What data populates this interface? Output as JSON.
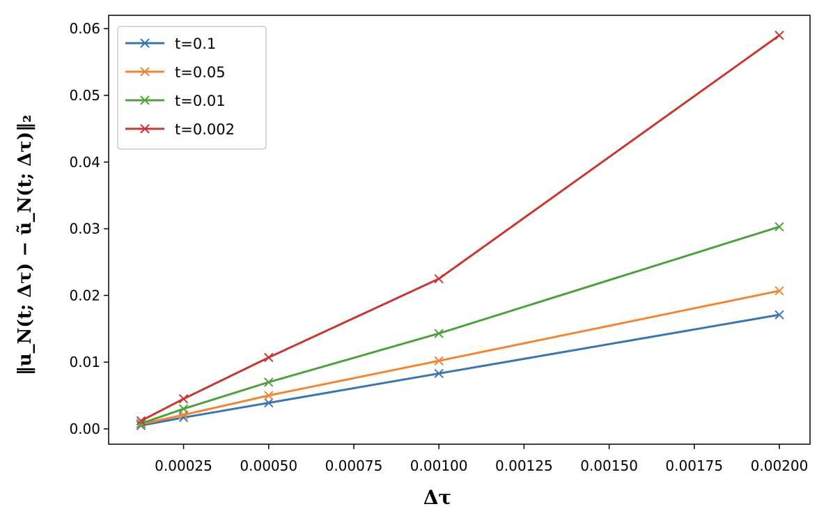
{
  "chart_data": {
    "type": "line",
    "xlabel": "Δτ",
    "ylabel": "‖u_N(t; Δτ) − ũ_N(t; Δτ)‖₂",
    "xlim": [
      3e-05,
      0.00209
    ],
    "ylim": [
      -0.0023,
      0.062
    ],
    "x_ticks": [
      0.00025,
      0.0005,
      0.00075,
      0.001,
      0.00125,
      0.0015,
      0.00175,
      0.002
    ],
    "x_tick_labels": [
      "0.00025",
      "0.00050",
      "0.00075",
      "0.00100",
      "0.00125",
      "0.00150",
      "0.00175",
      "0.00200"
    ],
    "y_ticks": [
      0,
      0.01,
      0.02,
      0.03,
      0.04,
      0.05,
      0.06
    ],
    "y_tick_labels": [
      "0.00",
      "0.01",
      "0.02",
      "0.03",
      "0.04",
      "0.05",
      "0.06"
    ],
    "grid": false,
    "legend_position": "top-left",
    "marker": "x",
    "x": [
      0.000125,
      0.00025,
      0.0005,
      0.001,
      0.002
    ],
    "series": [
      {
        "name": "t=0.1",
        "color": "#3b75af",
        "values": [
          0.0005,
          0.0017,
          0.0039,
          0.0083,
          0.0171
        ]
      },
      {
        "name": "t=0.05",
        "color": "#ef8636",
        "values": [
          0.0007,
          0.0021,
          0.005,
          0.0102,
          0.0207
        ]
      },
      {
        "name": "t=0.01",
        "color": "#519e3e",
        "values": [
          0.0008,
          0.003,
          0.007,
          0.0143,
          0.0303
        ]
      },
      {
        "name": "t=0.002",
        "color": "#c53932",
        "values": [
          0.0012,
          0.0045,
          0.0107,
          0.0225,
          0.059
        ]
      }
    ]
  }
}
